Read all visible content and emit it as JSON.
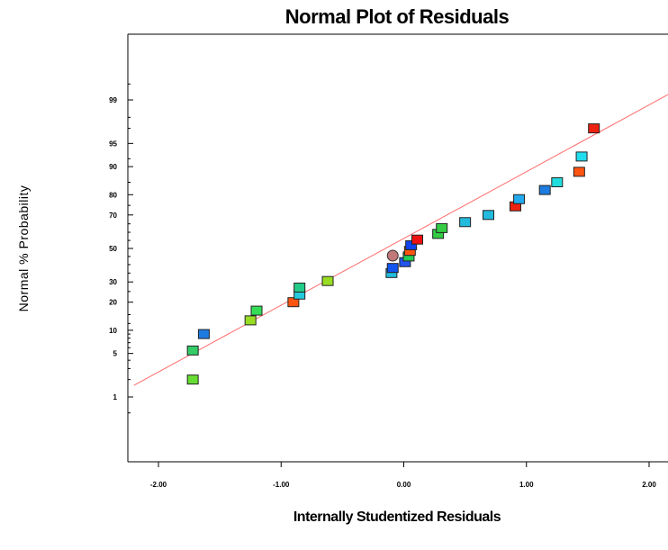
{
  "chart_data": {
    "type": "scatter",
    "title": "Normal Plot of Residuals",
    "xlabel": "Internally Studentized Residuals",
    "ylabel": "Normal % Probability",
    "xlim": [
      -2.2,
      2.2
    ],
    "x_ticks": [
      -2,
      -1,
      0,
      1,
      2
    ],
    "x_tick_labels": [
      "-2.00",
      "-1.00",
      "0.00",
      "1.00",
      "2.00"
    ],
    "y_scale": "normal-probability",
    "y_ticks": [
      1,
      5,
      10,
      20,
      30,
      50,
      70,
      80,
      90,
      95,
      99
    ],
    "y_tick_labels": [
      "1",
      "5",
      "10",
      "20",
      "30",
      "50",
      "70",
      "80",
      "90",
      "95",
      "99"
    ],
    "grid": false,
    "reference_line": {
      "from": [
        -2.2,
        1.6
      ],
      "to": [
        2.2,
        99.3
      ],
      "color": "#ff6b6b"
    },
    "points": [
      {
        "x": -1.72,
        "y": 2.0,
        "color": "#66dd33"
      },
      {
        "x": -1.72,
        "y": 5.5,
        "color": "#33cc66"
      },
      {
        "x": -1.63,
        "y": 9.0,
        "color": "#1e7be0"
      },
      {
        "x": -1.25,
        "y": 13.0,
        "color": "#99dd22"
      },
      {
        "x": -1.2,
        "y": 16.5,
        "color": "#33dd55"
      },
      {
        "x": -0.9,
        "y": 20.0,
        "color": "#ff5511"
      },
      {
        "x": -0.85,
        "y": 23.5,
        "color": "#22ccdd"
      },
      {
        "x": -0.85,
        "y": 27.0,
        "color": "#22cc88"
      },
      {
        "x": -0.62,
        "y": 30.5,
        "color": "#99dd22"
      },
      {
        "x": -0.1,
        "y": 35.0,
        "color": "#22bbdd"
      },
      {
        "x": -0.09,
        "y": 38.0,
        "color": "#1155ee"
      },
      {
        "x": 0.01,
        "y": 41.5,
        "color": "#2255ee"
      },
      {
        "x": 0.04,
        "y": 45.0,
        "color": "#22cc55"
      },
      {
        "x": -0.09,
        "y": 45.5,
        "color": "#c07878"
      },
      {
        "x": 0.05,
        "y": 48.5,
        "color": "#ff5511"
      },
      {
        "x": 0.06,
        "y": 52.0,
        "color": "#1144ee"
      },
      {
        "x": 0.11,
        "y": 55.5,
        "color": "#ee1111"
      },
      {
        "x": 0.28,
        "y": 59.0,
        "color": "#33cc44"
      },
      {
        "x": 0.31,
        "y": 62.5,
        "color": "#33cc44"
      },
      {
        "x": 0.5,
        "y": 66.0,
        "color": "#22bbdd"
      },
      {
        "x": 0.69,
        "y": 70.0,
        "color": "#22bbdd"
      },
      {
        "x": 0.91,
        "y": 74.5,
        "color": "#ee2211"
      },
      {
        "x": 0.94,
        "y": 78.0,
        "color": "#22aaee"
      },
      {
        "x": 1.15,
        "y": 82.0,
        "color": "#1e7be0"
      },
      {
        "x": 1.25,
        "y": 85.0,
        "color": "#22dddd"
      },
      {
        "x": 1.43,
        "y": 88.5,
        "color": "#ff5511"
      },
      {
        "x": 1.45,
        "y": 92.5,
        "color": "#22ddee"
      },
      {
        "x": 1.55,
        "y": 97.0,
        "color": "#ee2211"
      }
    ]
  }
}
